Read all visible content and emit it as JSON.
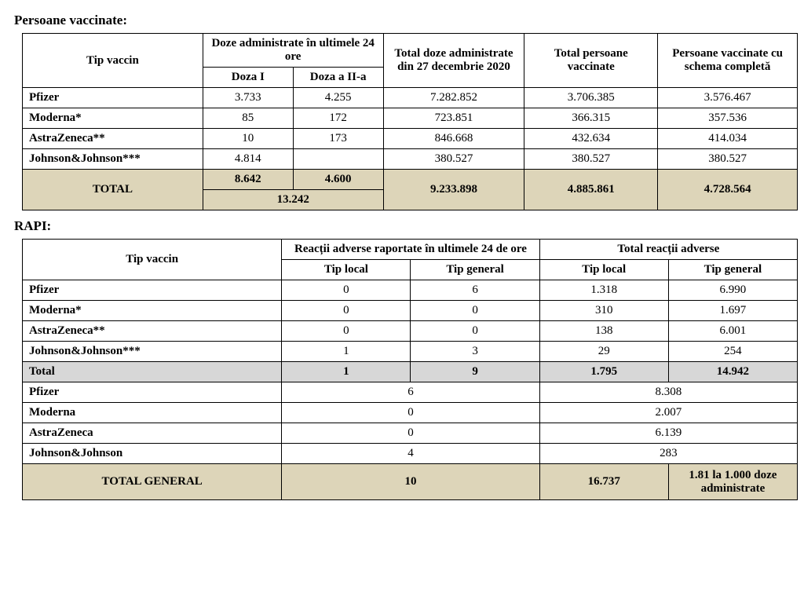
{
  "section1": {
    "title": "Persoane vaccinate:",
    "headers": {
      "tip_vaccin": "Tip vaccin",
      "doze_24h": "Doze administrate în ultimele 24 ore",
      "doza1": "Doza I",
      "doza2": "Doza a II-a",
      "total_doze_27dec": "Total doze administrate din 27 decembrie 2020",
      "total_persoane": "Total persoane vaccinate",
      "persoane_schema": "Persoane vaccinate cu schema completă"
    },
    "rows": [
      {
        "vaccin": "Pfizer",
        "d1": "3.733",
        "d2": "4.255",
        "total27": "7.282.852",
        "totalPers": "3.706.385",
        "schema": "3.576.467"
      },
      {
        "vaccin": "Moderna*",
        "d1": "85",
        "d2": "172",
        "total27": "723.851",
        "totalPers": "366.315",
        "schema": "357.536"
      },
      {
        "vaccin": "AstraZeneca**",
        "d1": "10",
        "d2": "173",
        "total27": "846.668",
        "totalPers": "432.634",
        "schema": "414.034"
      },
      {
        "vaccin": "Johnson&Johnson***",
        "d1": "4.814",
        "d2": "",
        "total27": "380.527",
        "totalPers": "380.527",
        "schema": "380.527"
      }
    ],
    "total": {
      "label": "TOTAL",
      "d1": "8.642",
      "d2": "4.600",
      "sum24": "13.242",
      "total27": "9.233.898",
      "totalPers": "4.885.861",
      "schema": "4.728.564"
    }
  },
  "section2": {
    "title": "RAPI:",
    "headers": {
      "tip_vaccin": "Tip vaccin",
      "reactii_24h": "Reacții adverse raportate în ultimele 24 de ore",
      "total_reactii": "Total reacții adverse",
      "tip_local": "Tip local",
      "tip_general": "Tip general"
    },
    "rows_detail": [
      {
        "vaccin": "Pfizer",
        "loc24": "0",
        "gen24": "6",
        "locTot": "1.318",
        "genTot": "6.990"
      },
      {
        "vaccin": "Moderna*",
        "loc24": "0",
        "gen24": "0",
        "locTot": "310",
        "genTot": "1.697"
      },
      {
        "vaccin": "AstraZeneca**",
        "loc24": "0",
        "gen24": "0",
        "locTot": "138",
        "genTot": "6.001"
      },
      {
        "vaccin": "Johnson&Johnson***",
        "loc24": "1",
        "gen24": "3",
        "locTot": "29",
        "genTot": "254"
      }
    ],
    "subtotal": {
      "label": "Total",
      "loc24": "1",
      "gen24": "9",
      "locTot": "1.795",
      "genTot": "14.942"
    },
    "rows_combined": [
      {
        "vaccin": "Pfizer",
        "c24": "6",
        "cTot": "8.308"
      },
      {
        "vaccin": "Moderna",
        "c24": "0",
        "cTot": "2.007"
      },
      {
        "vaccin": "AstraZeneca",
        "c24": "0",
        "cTot": "6.139"
      },
      {
        "vaccin": "Johnson&Johnson",
        "c24": "4",
        "cTot": "283"
      }
    ],
    "grand_total": {
      "label": "TOTAL GENERAL",
      "c24": "10",
      "cTotLoc": "16.737",
      "cTotGen": "1.81 la 1.000 doze administrate"
    }
  },
  "style": {
    "total_row_bg": "#ddd5b9",
    "gray_row_bg": "#d7d7d7",
    "border_color": "#000000",
    "font_family": "Times New Roman",
    "base_font_size_pt": 12
  }
}
